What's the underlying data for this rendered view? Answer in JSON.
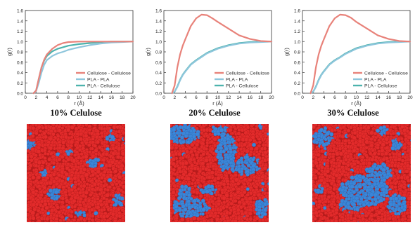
{
  "colors": {
    "cellulose_cellulose": "#e8827a",
    "pla_pla": "#8ec6dc",
    "pla_cellulose": "#4cb3ad",
    "cellulose_snapshot": "#e32b2b",
    "pla_snapshot": "#3b86d8"
  },
  "panels": [
    {
      "title": "10% Celulose"
    },
    {
      "title": "20% Celulose"
    },
    {
      "title": "30% Celulose"
    }
  ],
  "chart_data": [
    {
      "type": "line",
      "xlabel": "r (Å)",
      "ylabel": "g(r)",
      "xlim": [
        0,
        20
      ],
      "ylim": [
        0,
        1.6
      ],
      "xticks": [
        0,
        2,
        4,
        6,
        8,
        10,
        12,
        14,
        16,
        18,
        20
      ],
      "yticks": [
        0.0,
        0.2,
        0.4,
        0.6,
        0.8,
        1.0,
        1.2,
        1.4,
        1.6
      ],
      "legend_position": "bottom-right",
      "series": [
        {
          "name": "Cellulose - Cellulose",
          "color_key": "cellulose_cellulose",
          "x": [
            1.5,
            2.0,
            2.5,
            3.0,
            3.5,
            4.0,
            5.0,
            6.0,
            7.0,
            8.0,
            10.0,
            12.0,
            14.0,
            16.0,
            18.0,
            20.0
          ],
          "y": [
            0.0,
            0.05,
            0.28,
            0.5,
            0.65,
            0.75,
            0.86,
            0.93,
            0.97,
            0.99,
            1.0,
            1.0,
            1.0,
            1.0,
            1.0,
            1.0
          ]
        },
        {
          "name": "PLA - PLA",
          "color_key": "pla_pla",
          "x": [
            1.5,
            2.0,
            2.5,
            3.0,
            3.5,
            4.0,
            5.0,
            6.0,
            7.0,
            8.0,
            10.0,
            12.0,
            14.0,
            16.0,
            18.0,
            20.0
          ],
          "y": [
            0.0,
            0.04,
            0.2,
            0.4,
            0.55,
            0.64,
            0.72,
            0.77,
            0.8,
            0.84,
            0.89,
            0.93,
            0.96,
            0.98,
            0.99,
            1.0
          ]
        },
        {
          "name": "PLA - Cellulose",
          "color_key": "pla_cellulose",
          "x": [
            1.5,
            2.0,
            2.5,
            3.0,
            3.5,
            4.0,
            5.0,
            6.0,
            7.0,
            8.0,
            10.0,
            12.0,
            14.0,
            16.0,
            18.0,
            20.0
          ],
          "y": [
            0.0,
            0.05,
            0.27,
            0.5,
            0.63,
            0.72,
            0.81,
            0.86,
            0.89,
            0.92,
            0.95,
            0.97,
            0.99,
            1.0,
            1.0,
            1.0
          ]
        }
      ]
    },
    {
      "type": "line",
      "xlabel": "r (Å)",
      "ylabel": "g(r)",
      "xlim": [
        0,
        20
      ],
      "ylim": [
        0,
        1.6
      ],
      "xticks": [
        0,
        2,
        4,
        6,
        8,
        10,
        12,
        14,
        16,
        18,
        20
      ],
      "yticks": [
        0.0,
        0.2,
        0.4,
        0.6,
        0.8,
        1.0,
        1.2,
        1.4,
        1.6
      ],
      "legend_position": "bottom-right",
      "series": [
        {
          "name": "Cellulose - Cellulose",
          "color_key": "cellulose_cellulose",
          "x": [
            1.5,
            2.0,
            2.5,
            3.0,
            3.5,
            4.0,
            5.0,
            6.0,
            7.0,
            8.0,
            9.0,
            10.0,
            12.0,
            14.0,
            16.0,
            18.0,
            20.0
          ],
          "y": [
            0.0,
            0.15,
            0.5,
            0.75,
            0.92,
            1.05,
            1.3,
            1.45,
            1.52,
            1.51,
            1.45,
            1.38,
            1.25,
            1.12,
            1.05,
            1.01,
            1.0
          ]
        },
        {
          "name": "PLA - PLA",
          "color_key": "pla_pla",
          "x": [
            1.5,
            2.0,
            2.5,
            3.0,
            3.5,
            4.0,
            5.0,
            6.0,
            7.0,
            8.0,
            10.0,
            12.0,
            14.0,
            16.0,
            18.0,
            20.0
          ],
          "y": [
            0.0,
            0.03,
            0.12,
            0.25,
            0.35,
            0.42,
            0.55,
            0.63,
            0.7,
            0.77,
            0.86,
            0.92,
            0.96,
            0.98,
            0.99,
            1.0
          ]
        },
        {
          "name": "PLA - Cellulose",
          "color_key": "pla_cellulose",
          "x": [
            1.5,
            2.0,
            2.5,
            3.0,
            3.5,
            4.0,
            5.0,
            6.0,
            7.0,
            8.0,
            10.0,
            12.0,
            14.0,
            16.0,
            18.0,
            20.0
          ],
          "y": [
            0.0,
            0.03,
            0.13,
            0.26,
            0.36,
            0.43,
            0.56,
            0.64,
            0.71,
            0.78,
            0.87,
            0.93,
            0.97,
            0.99,
            1.0,
            1.0
          ]
        }
      ]
    },
    {
      "type": "line",
      "xlabel": "r (Å)",
      "ylabel": "g(r)",
      "xlim": [
        0,
        20
      ],
      "ylim": [
        0,
        1.6
      ],
      "xticks": [
        0,
        2,
        4,
        6,
        8,
        10,
        12,
        14,
        16,
        18,
        20
      ],
      "yticks": [
        0.0,
        0.2,
        0.4,
        0.6,
        0.8,
        1.0,
        1.2,
        1.4,
        1.6
      ],
      "legend_position": "bottom-right",
      "series": [
        {
          "name": "Cellulose - Cellulose",
          "color_key": "cellulose_cellulose",
          "x": [
            1.5,
            2.0,
            2.5,
            3.0,
            3.5,
            4.0,
            5.0,
            6.0,
            7.0,
            8.0,
            9.0,
            10.0,
            12.0,
            14.0,
            16.0,
            18.0,
            20.0
          ],
          "y": [
            0.0,
            0.15,
            0.5,
            0.75,
            0.92,
            1.05,
            1.3,
            1.45,
            1.52,
            1.51,
            1.46,
            1.38,
            1.25,
            1.12,
            1.05,
            1.01,
            1.0
          ]
        },
        {
          "name": "PLA - PLA",
          "color_key": "pla_pla",
          "x": [
            1.5,
            2.0,
            2.5,
            3.0,
            3.5,
            4.0,
            5.0,
            6.0,
            7.0,
            8.0,
            10.0,
            12.0,
            14.0,
            16.0,
            18.0,
            20.0
          ],
          "y": [
            0.0,
            0.03,
            0.12,
            0.25,
            0.35,
            0.42,
            0.55,
            0.63,
            0.69,
            0.76,
            0.86,
            0.92,
            0.96,
            0.98,
            0.99,
            1.0
          ]
        },
        {
          "name": "PLA - Cellulose",
          "color_key": "pla_cellulose",
          "x": [
            1.5,
            2.0,
            2.5,
            3.0,
            3.5,
            4.0,
            5.0,
            6.0,
            7.0,
            8.0,
            10.0,
            12.0,
            14.0,
            16.0,
            18.0,
            20.0
          ],
          "y": [
            0.0,
            0.03,
            0.13,
            0.26,
            0.36,
            0.43,
            0.56,
            0.64,
            0.7,
            0.77,
            0.87,
            0.93,
            0.97,
            0.99,
            1.0,
            1.0
          ]
        }
      ]
    }
  ]
}
